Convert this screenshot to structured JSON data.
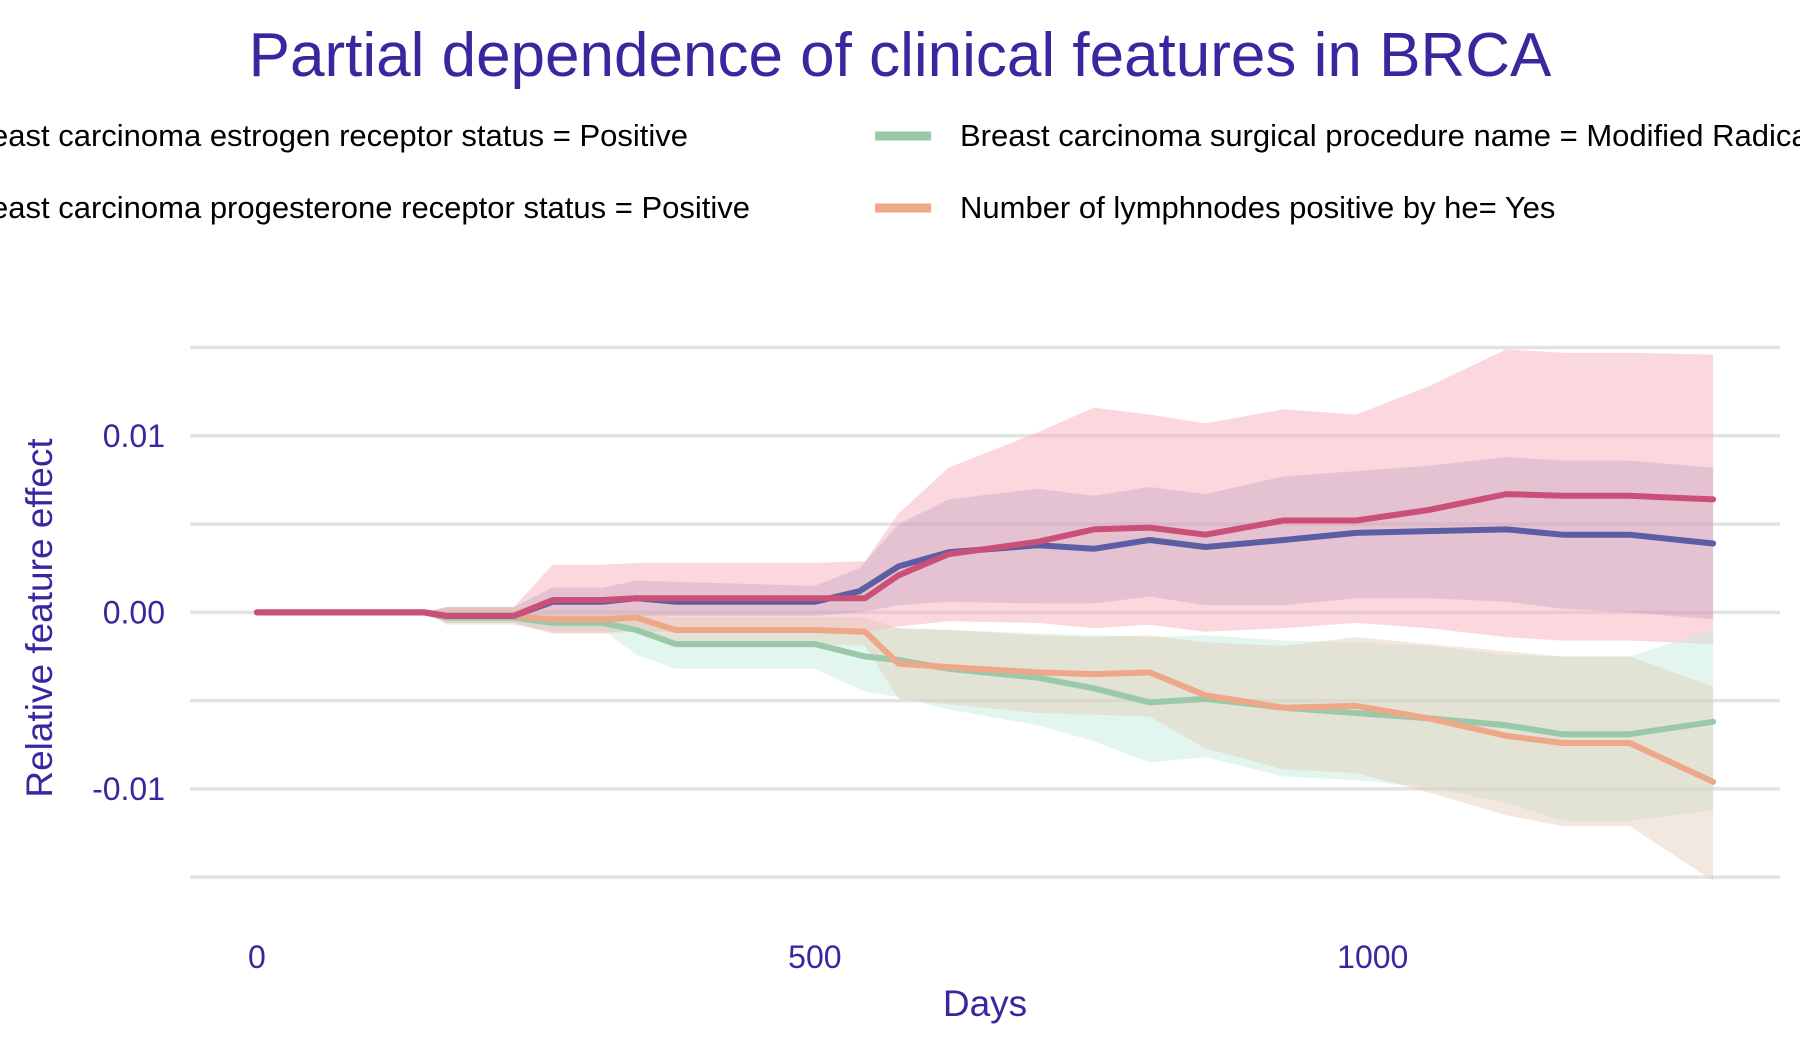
{
  "chart_data": {
    "type": "line",
    "title": "Partial dependence of clinical features in BRCA",
    "xlabel": "Days",
    "ylabel": "Relative feature effect",
    "xlim": [
      -60,
      1365
    ],
    "ylim": [
      -0.0155,
      0.0152
    ],
    "x_ticks": [
      0,
      500,
      1000
    ],
    "x_tick_labels": [
      "0",
      "500",
      "1000"
    ],
    "y_ticks": [
      -0.01,
      0.0,
      0.01
    ],
    "y_tick_labels": [
      "-0.01",
      "0.00",
      "0.01"
    ],
    "grid": true,
    "legend_position": "top",
    "text_color": "#3b26a0",
    "series": [
      {
        "name": "Breast carcinoma estrogen receptor status = Positive",
        "color": "#5c5ea4",
        "band_color": "#7c7ab9",
        "band_opacity": 0.3,
        "points": [
          [
            0,
            0.0
          ],
          [
            100,
            0.0
          ],
          [
            150,
            0.0
          ],
          [
            170,
            -0.0002
          ],
          [
            230,
            -0.0002
          ],
          [
            265,
            0.0006
          ],
          [
            310,
            0.0006
          ],
          [
            340,
            0.0008
          ],
          [
            375,
            0.0006
          ],
          [
            500,
            0.0006
          ],
          [
            540,
            0.0012
          ],
          [
            575,
            0.0026
          ],
          [
            620,
            0.0034
          ],
          [
            700,
            0.0038
          ],
          [
            750,
            0.0036
          ],
          [
            800,
            0.0041
          ],
          [
            850,
            0.0037
          ],
          [
            920,
            0.0041
          ],
          [
            985,
            0.0045
          ],
          [
            1050,
            0.0046
          ],
          [
            1120,
            0.0047
          ],
          [
            1170,
            0.0044
          ],
          [
            1230,
            0.0044
          ],
          [
            1305,
            0.0039
          ]
        ],
        "upper": [
          [
            150,
            0.0
          ],
          [
            170,
            0.0003
          ],
          [
            230,
            0.0003
          ],
          [
            265,
            0.0014
          ],
          [
            310,
            0.0014
          ],
          [
            340,
            0.0018
          ],
          [
            500,
            0.0015
          ],
          [
            540,
            0.0025
          ],
          [
            575,
            0.005
          ],
          [
            620,
            0.0064
          ],
          [
            700,
            0.007
          ],
          [
            750,
            0.0066
          ],
          [
            800,
            0.0071
          ],
          [
            850,
            0.0067
          ],
          [
            920,
            0.0077
          ],
          [
            985,
            0.008
          ],
          [
            1050,
            0.0083
          ],
          [
            1120,
            0.0088
          ],
          [
            1170,
            0.0086
          ],
          [
            1230,
            0.0086
          ],
          [
            1305,
            0.0082
          ]
        ],
        "lower": [
          [
            150,
            0.0
          ],
          [
            170,
            -0.0004
          ],
          [
            230,
            -0.0004
          ],
          [
            265,
            -0.0004
          ],
          [
            310,
            -0.0004
          ],
          [
            340,
            -0.0002
          ],
          [
            500,
            -0.0002
          ],
          [
            540,
            0.0
          ],
          [
            575,
            0.0004
          ],
          [
            620,
            0.0006
          ],
          [
            700,
            0.0005
          ],
          [
            750,
            0.0005
          ],
          [
            800,
            0.0009
          ],
          [
            850,
            0.0004
          ],
          [
            920,
            0.0004
          ],
          [
            985,
            0.0008
          ],
          [
            1050,
            0.0008
          ],
          [
            1120,
            0.0006
          ],
          [
            1170,
            0.0002
          ],
          [
            1230,
            0.0
          ],
          [
            1305,
            -0.0004
          ]
        ]
      },
      {
        "name": "Breast carcinoma progesterone receptor status = Positive",
        "color": "#cb5078",
        "band_color": "#f4a9b6",
        "band_opacity": 0.45,
        "points": [
          [
            0,
            0.0
          ],
          [
            150,
            0.0
          ],
          [
            170,
            -0.0002
          ],
          [
            230,
            -0.0002
          ],
          [
            265,
            0.0007
          ],
          [
            310,
            0.0007
          ],
          [
            340,
            0.0008
          ],
          [
            500,
            0.0008
          ],
          [
            545,
            0.0008
          ],
          [
            575,
            0.0021
          ],
          [
            620,
            0.0033
          ],
          [
            700,
            0.004
          ],
          [
            750,
            0.0047
          ],
          [
            800,
            0.0048
          ],
          [
            850,
            0.0044
          ],
          [
            920,
            0.0052
          ],
          [
            985,
            0.0052
          ],
          [
            1050,
            0.0058
          ],
          [
            1120,
            0.0067
          ],
          [
            1170,
            0.0066
          ],
          [
            1230,
            0.0066
          ],
          [
            1305,
            0.0064
          ]
        ],
        "upper": [
          [
            150,
            0.0
          ],
          [
            170,
            0.0003
          ],
          [
            230,
            0.0003
          ],
          [
            265,
            0.0027
          ],
          [
            310,
            0.0027
          ],
          [
            340,
            0.0028
          ],
          [
            500,
            0.0028
          ],
          [
            545,
            0.0029
          ],
          [
            575,
            0.0056
          ],
          [
            620,
            0.0082
          ],
          [
            700,
            0.0102
          ],
          [
            750,
            0.0116
          ],
          [
            800,
            0.0112
          ],
          [
            850,
            0.0107
          ],
          [
            920,
            0.0115
          ],
          [
            985,
            0.0112
          ],
          [
            1050,
            0.0128
          ],
          [
            1120,
            0.0149
          ],
          [
            1170,
            0.0147
          ],
          [
            1230,
            0.0147
          ],
          [
            1305,
            0.0146
          ]
        ],
        "lower": [
          [
            150,
            0.0
          ],
          [
            170,
            -0.0006
          ],
          [
            230,
            -0.0006
          ],
          [
            265,
            -0.0012
          ],
          [
            310,
            -0.0012
          ],
          [
            340,
            -0.0011
          ],
          [
            500,
            -0.0011
          ],
          [
            545,
            -0.0011
          ],
          [
            575,
            -0.0008
          ],
          [
            620,
            -0.0005
          ],
          [
            700,
            -0.0006
          ],
          [
            750,
            -0.0009
          ],
          [
            800,
            -0.0007
          ],
          [
            850,
            -0.0011
          ],
          [
            920,
            -0.0009
          ],
          [
            985,
            -0.0006
          ],
          [
            1050,
            -0.0009
          ],
          [
            1120,
            -0.0014
          ],
          [
            1170,
            -0.0016
          ],
          [
            1230,
            -0.0016
          ],
          [
            1305,
            -0.0018
          ]
        ]
      },
      {
        "name": "Breast carcinoma surgical procedure name = Modified Radical Mastectomy",
        "color": "#99c9a8",
        "band_color": "#c8ebe0",
        "band_opacity": 0.5,
        "points": [
          [
            0,
            0.0
          ],
          [
            150,
            0.0
          ],
          [
            170,
            -0.0003
          ],
          [
            230,
            -0.0003
          ],
          [
            265,
            -0.0006
          ],
          [
            310,
            -0.0006
          ],
          [
            340,
            -0.001
          ],
          [
            375,
            -0.0018
          ],
          [
            500,
            -0.0018
          ],
          [
            545,
            -0.0025
          ],
          [
            575,
            -0.0027
          ],
          [
            620,
            -0.0032
          ],
          [
            700,
            -0.0037
          ],
          [
            750,
            -0.0043
          ],
          [
            800,
            -0.0051
          ],
          [
            850,
            -0.0049
          ],
          [
            920,
            -0.0054
          ],
          [
            985,
            -0.0057
          ],
          [
            1050,
            -0.006
          ],
          [
            1120,
            -0.0064
          ],
          [
            1170,
            -0.0069
          ],
          [
            1230,
            -0.0069
          ],
          [
            1305,
            -0.0062
          ]
        ],
        "upper": [
          [
            150,
            0.0
          ],
          [
            170,
            0.0
          ],
          [
            230,
            0.0
          ],
          [
            265,
            -0.0002
          ],
          [
            310,
            -0.0002
          ],
          [
            340,
            -0.0004
          ],
          [
            375,
            -0.0009
          ],
          [
            500,
            -0.0009
          ],
          [
            545,
            -0.0009
          ],
          [
            575,
            -0.0009
          ],
          [
            620,
            -0.001
          ],
          [
            700,
            -0.0012
          ],
          [
            750,
            -0.0013
          ],
          [
            800,
            -0.0014
          ],
          [
            850,
            -0.0013
          ],
          [
            920,
            -0.0016
          ],
          [
            985,
            -0.0017
          ],
          [
            1050,
            -0.0019
          ],
          [
            1120,
            -0.0024
          ],
          [
            1170,
            -0.0025
          ],
          [
            1230,
            -0.0025
          ],
          [
            1305,
            -0.001
          ]
        ],
        "lower": [
          [
            150,
            0.0
          ],
          [
            170,
            -0.0006
          ],
          [
            230,
            -0.0006
          ],
          [
            265,
            -0.001
          ],
          [
            310,
            -0.001
          ],
          [
            340,
            -0.0024
          ],
          [
            375,
            -0.0032
          ],
          [
            500,
            -0.0032
          ],
          [
            545,
            -0.0045
          ],
          [
            575,
            -0.0048
          ],
          [
            620,
            -0.0055
          ],
          [
            700,
            -0.0064
          ],
          [
            750,
            -0.0073
          ],
          [
            800,
            -0.0085
          ],
          [
            850,
            -0.0082
          ],
          [
            920,
            -0.0093
          ],
          [
            985,
            -0.0095
          ],
          [
            1050,
            -0.0099
          ],
          [
            1120,
            -0.0108
          ],
          [
            1170,
            -0.0118
          ],
          [
            1230,
            -0.0118
          ],
          [
            1305,
            -0.0112
          ]
        ]
      },
      {
        "name": "Number of lymphnodes positive by he= Yes",
        "color": "#eea788",
        "band_color": "#e0c6ae",
        "band_opacity": 0.4,
        "points": [
          [
            0,
            0.0
          ],
          [
            150,
            0.0
          ],
          [
            170,
            -0.0002
          ],
          [
            230,
            -0.0002
          ],
          [
            265,
            -0.0004
          ],
          [
            310,
            -0.0004
          ],
          [
            340,
            -0.0003
          ],
          [
            375,
            -0.001
          ],
          [
            500,
            -0.001
          ],
          [
            545,
            -0.0011
          ],
          [
            575,
            -0.0029
          ],
          [
            620,
            -0.0031
          ],
          [
            700,
            -0.0034
          ],
          [
            750,
            -0.0035
          ],
          [
            800,
            -0.0034
          ],
          [
            850,
            -0.0047
          ],
          [
            920,
            -0.0054
          ],
          [
            985,
            -0.0053
          ],
          [
            1050,
            -0.006
          ],
          [
            1120,
            -0.007
          ],
          [
            1170,
            -0.0074
          ],
          [
            1230,
            -0.0074
          ],
          [
            1305,
            -0.0096
          ]
        ],
        "upper": [
          [
            150,
            0.0
          ],
          [
            170,
            0.0003
          ],
          [
            230,
            0.0003
          ],
          [
            265,
            0.0
          ],
          [
            310,
            0.0
          ],
          [
            340,
            0.0
          ],
          [
            375,
            -0.0003
          ],
          [
            500,
            -0.0003
          ],
          [
            545,
            -0.0003
          ],
          [
            575,
            -0.0009
          ],
          [
            620,
            -0.001
          ],
          [
            700,
            -0.0013
          ],
          [
            750,
            -0.0014
          ],
          [
            800,
            -0.0013
          ],
          [
            850,
            -0.0017
          ],
          [
            920,
            -0.0019
          ],
          [
            985,
            -0.0014
          ],
          [
            1050,
            -0.0018
          ],
          [
            1120,
            -0.0022
          ],
          [
            1170,
            -0.0025
          ],
          [
            1230,
            -0.0025
          ],
          [
            1305,
            -0.0042
          ]
        ],
        "lower": [
          [
            150,
            0.0
          ],
          [
            170,
            -0.0007
          ],
          [
            230,
            -0.0007
          ],
          [
            265,
            -0.0011
          ],
          [
            310,
            -0.0011
          ],
          [
            340,
            -0.0011
          ],
          [
            375,
            -0.0018
          ],
          [
            500,
            -0.0018
          ],
          [
            545,
            -0.0019
          ],
          [
            575,
            -0.0049
          ],
          [
            620,
            -0.0052
          ],
          [
            700,
            -0.0057
          ],
          [
            750,
            -0.0058
          ],
          [
            800,
            -0.0059
          ],
          [
            850,
            -0.0077
          ],
          [
            920,
            -0.0089
          ],
          [
            985,
            -0.0091
          ],
          [
            1050,
            -0.0102
          ],
          [
            1120,
            -0.0115
          ],
          [
            1170,
            -0.0121
          ],
          [
            1230,
            -0.0121
          ],
          [
            1305,
            -0.0152
          ]
        ]
      }
    ]
  }
}
